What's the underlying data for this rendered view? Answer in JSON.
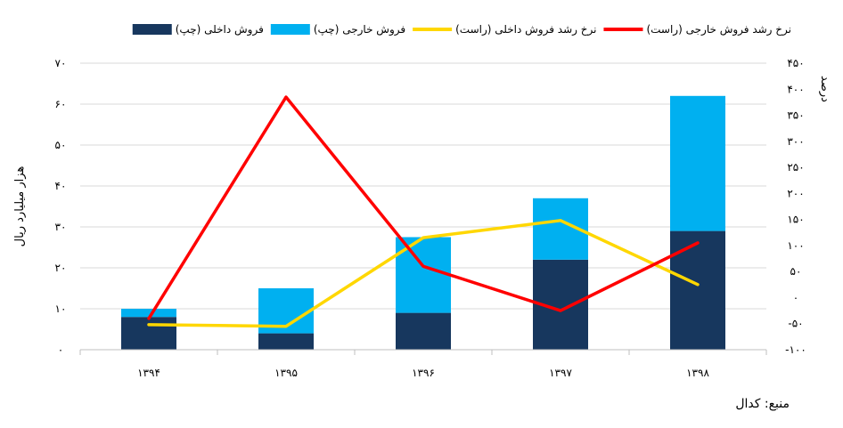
{
  "chart_data": {
    "type": "bar",
    "categories": [
      "۱۳۹۴",
      "۱۳۹۵",
      "۱۳۹۶",
      "۱۳۹۷",
      "۱۳۹۸"
    ],
    "series": [
      {
        "name": "فروش داخلی (چپ)",
        "type": "bar",
        "axis": "left",
        "stack": "a",
        "color": "#17375E",
        "values": [
          8,
          4,
          9,
          22,
          29
        ]
      },
      {
        "name": "فروش خارجی (چپ)",
        "type": "bar",
        "axis": "left",
        "stack": "a",
        "color": "#00B0F0",
        "values": [
          2,
          11,
          18.5,
          15,
          33
        ]
      },
      {
        "name": "نرخ رشد فروش داخلی (راست)",
        "type": "line",
        "axis": "right",
        "color": "#FFD700",
        "values": [
          -52,
          -55,
          115,
          148,
          25
        ]
      },
      {
        "name": "نرخ رشد فروش خارجی (راست)",
        "type": "line",
        "axis": "right",
        "color": "#FF0000",
        "values": [
          -40,
          385,
          60,
          -25,
          105
        ]
      }
    ],
    "left_axis": {
      "label": "هزار میلیارد ریال",
      "range": [
        0,
        70
      ],
      "ticks": [
        "۰",
        "۱۰",
        "۲۰",
        "۳۰",
        "۴۰",
        "۵۰",
        "۶۰",
        "۷۰"
      ]
    },
    "right_axis": {
      "label": "درصد",
      "range": [
        -100,
        450
      ],
      "ticks": [
        "-۱۰۰",
        "-۵۰",
        "۰",
        "۵۰",
        "۱۰۰",
        "۱۵۰",
        "۲۰۰",
        "۲۵۰",
        "۳۰۰",
        "۳۵۰",
        "۴۰۰",
        "۴۵۰"
      ]
    },
    "grid": true,
    "legend_position": "top"
  },
  "source_text": "منبع: کدال"
}
